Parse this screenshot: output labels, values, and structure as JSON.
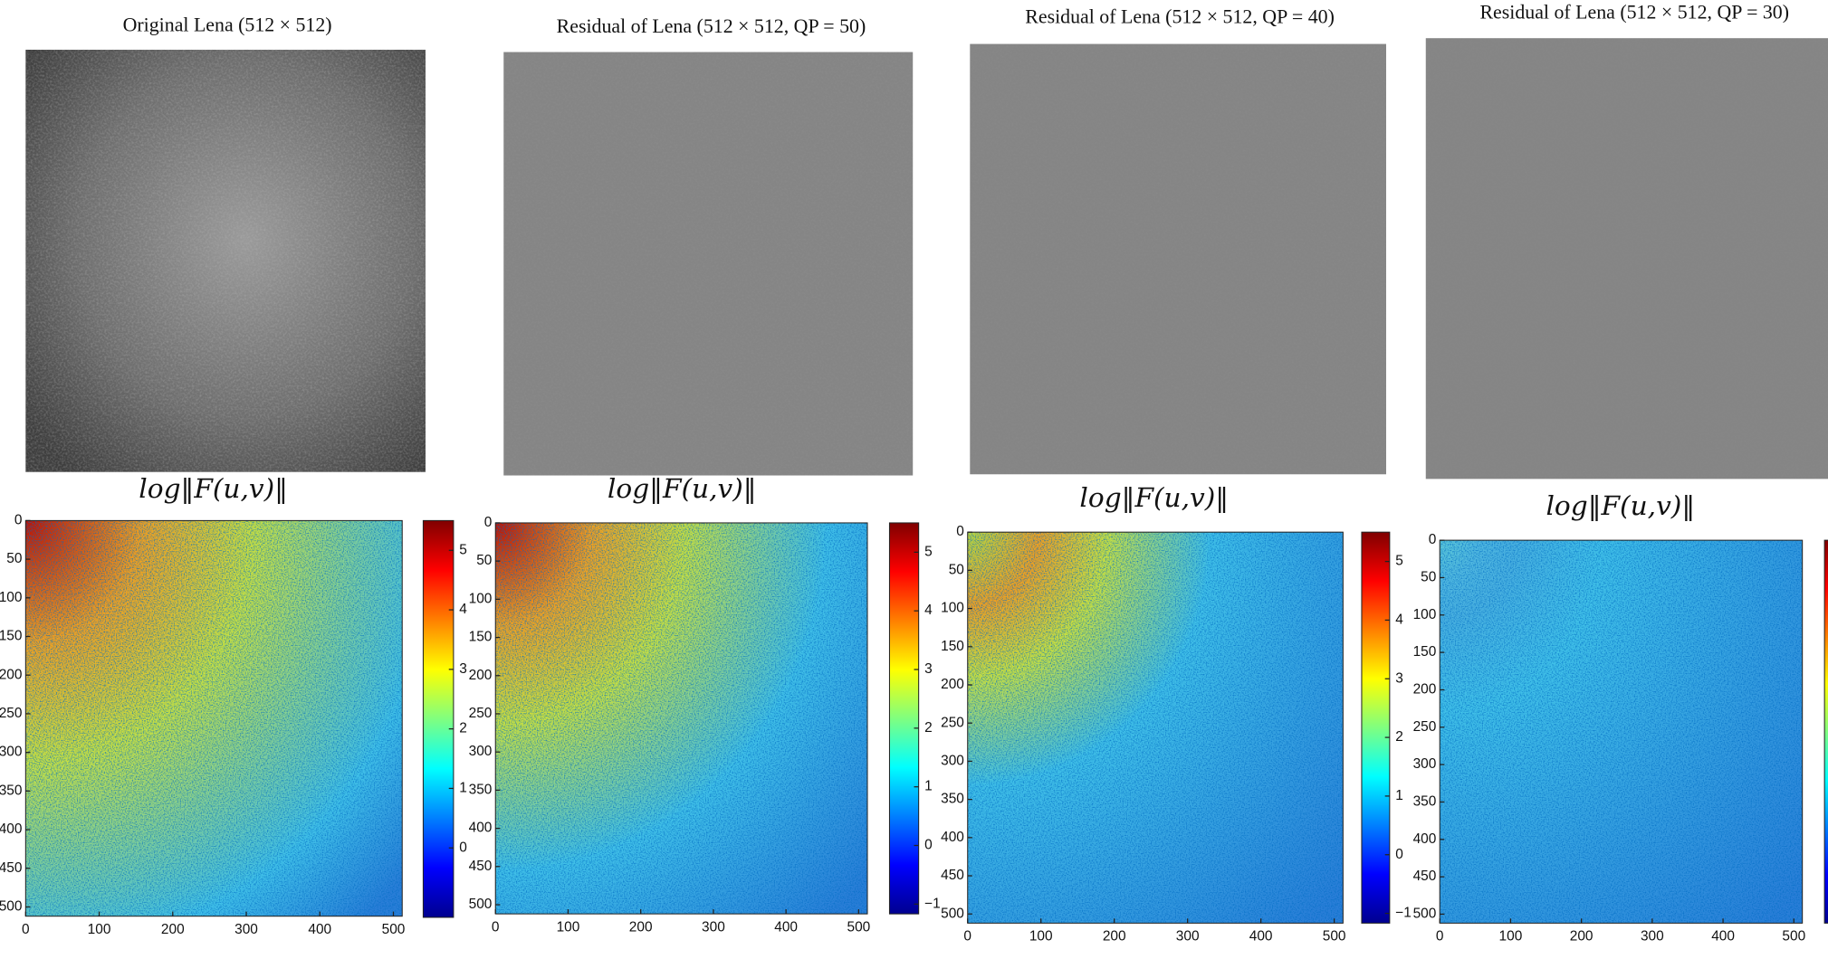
{
  "panels": [
    {
      "title": "Original Lena (512 × 512)",
      "spectrum_title": "log‖F(u,v)‖",
      "x_ticks": [
        "0",
        "100",
        "200",
        "300",
        "400",
        "500"
      ],
      "y_ticks": [
        "0",
        "50",
        "100",
        "150",
        "200",
        "250",
        "300",
        "350",
        "400",
        "450",
        "500"
      ],
      "colorbar_ticks": [
        "5",
        "4",
        "3",
        "2",
        "1",
        "0"
      ]
    },
    {
      "title": "Residual of Lena (512 × 512, QP = 50)",
      "spectrum_title": "log‖F(u,v)‖",
      "x_ticks": [
        "0",
        "100",
        "200",
        "300",
        "400",
        "500"
      ],
      "y_ticks": [
        "0",
        "50",
        "100",
        "150",
        "200",
        "250",
        "300",
        "350",
        "400",
        "450",
        "500"
      ],
      "colorbar_ticks": [
        "5",
        "4",
        "3",
        "2",
        "1",
        "0",
        "−1"
      ]
    },
    {
      "title": "Residual of Lena (512 × 512, QP = 40)",
      "spectrum_title": "log‖F(u,v)‖",
      "x_ticks": [
        "0",
        "100",
        "200",
        "300",
        "400",
        "500"
      ],
      "y_ticks": [
        "0",
        "50",
        "100",
        "150",
        "200",
        "250",
        "300",
        "350",
        "400",
        "450",
        "500"
      ],
      "colorbar_ticks": [
        "5",
        "4",
        "3",
        "2",
        "1",
        "0",
        "−1"
      ]
    },
    {
      "title": "Residual of Lena (512 × 512, QP = 30)",
      "spectrum_title": "log‖F(u,v)‖",
      "x_ticks": [
        "0",
        "100",
        "200",
        "300",
        "400",
        "500"
      ],
      "y_ticks": [
        "0",
        "50",
        "100",
        "150",
        "200",
        "250",
        "300",
        "350",
        "400",
        "450",
        "500"
      ]
    }
  ]
}
